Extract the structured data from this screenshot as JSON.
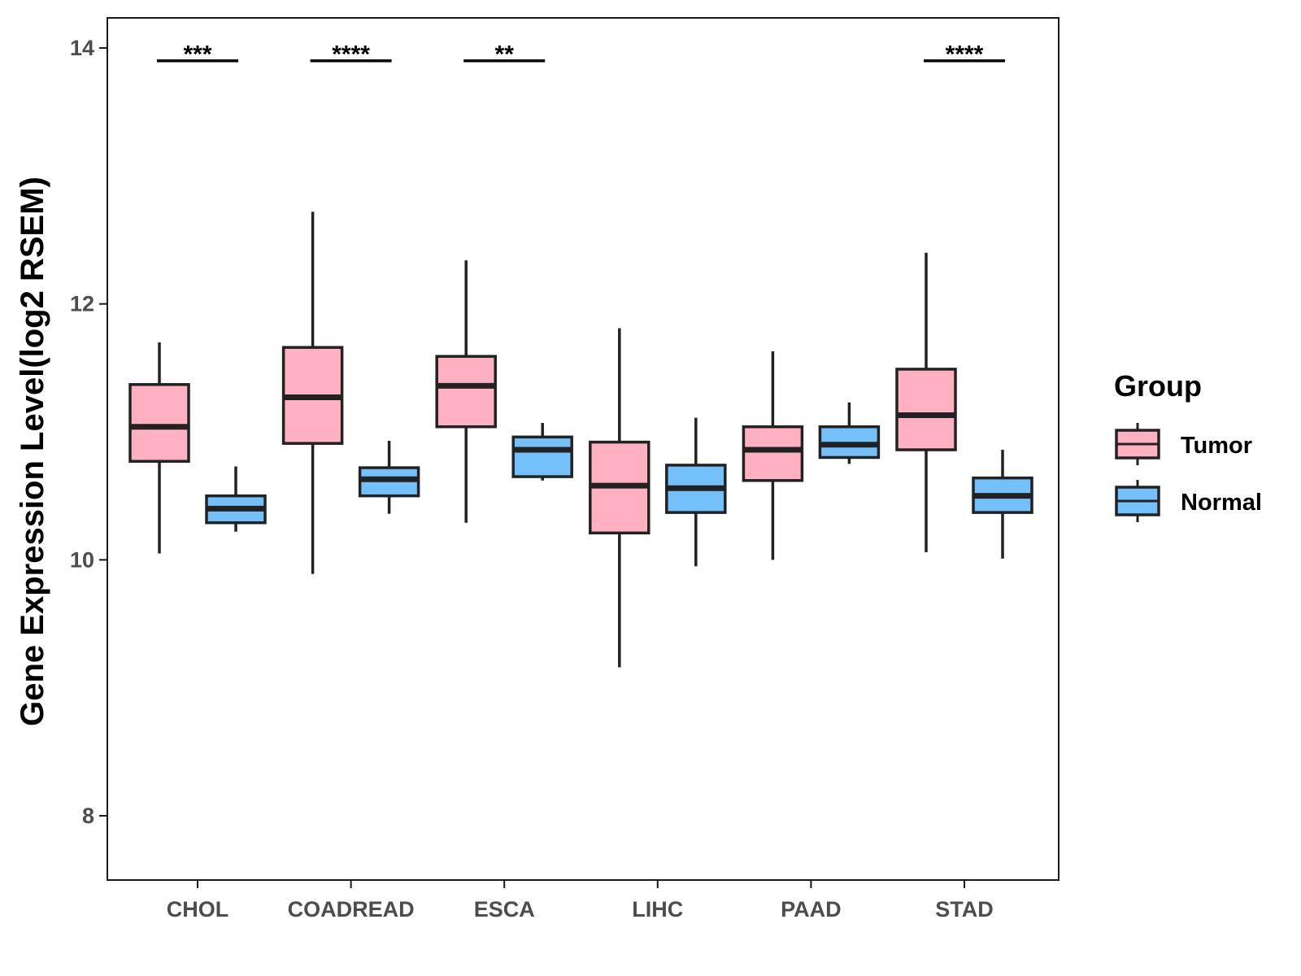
{
  "chart_data": {
    "type": "boxplot",
    "title": "",
    "xlabel": "",
    "ylabel": "Gene Expression Level(log2 RSEM)",
    "ylim": [
      7.5,
      14.25
    ],
    "yticks": [
      8,
      10,
      12,
      14
    ],
    "categories": [
      "CHOL",
      "COADREAD",
      "ESCA",
      "LIHC",
      "PAAD",
      "STAD"
    ],
    "legend": {
      "title": "Group",
      "position": "right"
    },
    "series": [
      {
        "name": "Tumor",
        "color": "#FFB0C1",
        "boxes": [
          {
            "min": 10.05,
            "q1": 10.77,
            "median": 11.04,
            "q3": 11.37,
            "max": 11.7
          },
          {
            "min": 9.89,
            "q1": 10.91,
            "median": 11.27,
            "q3": 11.66,
            "max": 12.72
          },
          {
            "min": 10.29,
            "q1": 11.04,
            "median": 11.36,
            "q3": 11.59,
            "max": 12.34
          },
          {
            "min": 9.16,
            "q1": 10.21,
            "median": 10.58,
            "q3": 10.92,
            "max": 11.81
          },
          {
            "min": 10.0,
            "q1": 10.62,
            "median": 10.86,
            "q3": 11.04,
            "max": 11.63
          },
          {
            "min": 10.06,
            "q1": 10.86,
            "median": 11.13,
            "q3": 11.49,
            "max": 12.4
          }
        ]
      },
      {
        "name": "Normal",
        "color": "#74C0FB",
        "boxes": [
          {
            "min": 10.22,
            "q1": 10.29,
            "median": 10.4,
            "q3": 10.5,
            "max": 10.73
          },
          {
            "min": 10.36,
            "q1": 10.5,
            "median": 10.63,
            "q3": 10.72,
            "max": 10.93
          },
          {
            "min": 10.62,
            "q1": 10.65,
            "median": 10.86,
            "q3": 10.96,
            "max": 11.07
          },
          {
            "min": 9.95,
            "q1": 10.37,
            "median": 10.56,
            "q3": 10.74,
            "max": 11.11
          },
          {
            "min": 10.75,
            "q1": 10.8,
            "median": 10.9,
            "q3": 11.04,
            "max": 11.23
          },
          {
            "min": 10.01,
            "q1": 10.37,
            "median": 10.5,
            "q3": 10.64,
            "max": 10.86
          }
        ]
      }
    ],
    "significance": [
      {
        "category": "CHOL",
        "label": "***",
        "y": 13.9
      },
      {
        "category": "COADREAD",
        "label": "****",
        "y": 13.9
      },
      {
        "category": "ESCA",
        "label": "**",
        "y": 13.9
      },
      {
        "category": "STAD",
        "label": "****",
        "y": 13.9
      }
    ]
  }
}
